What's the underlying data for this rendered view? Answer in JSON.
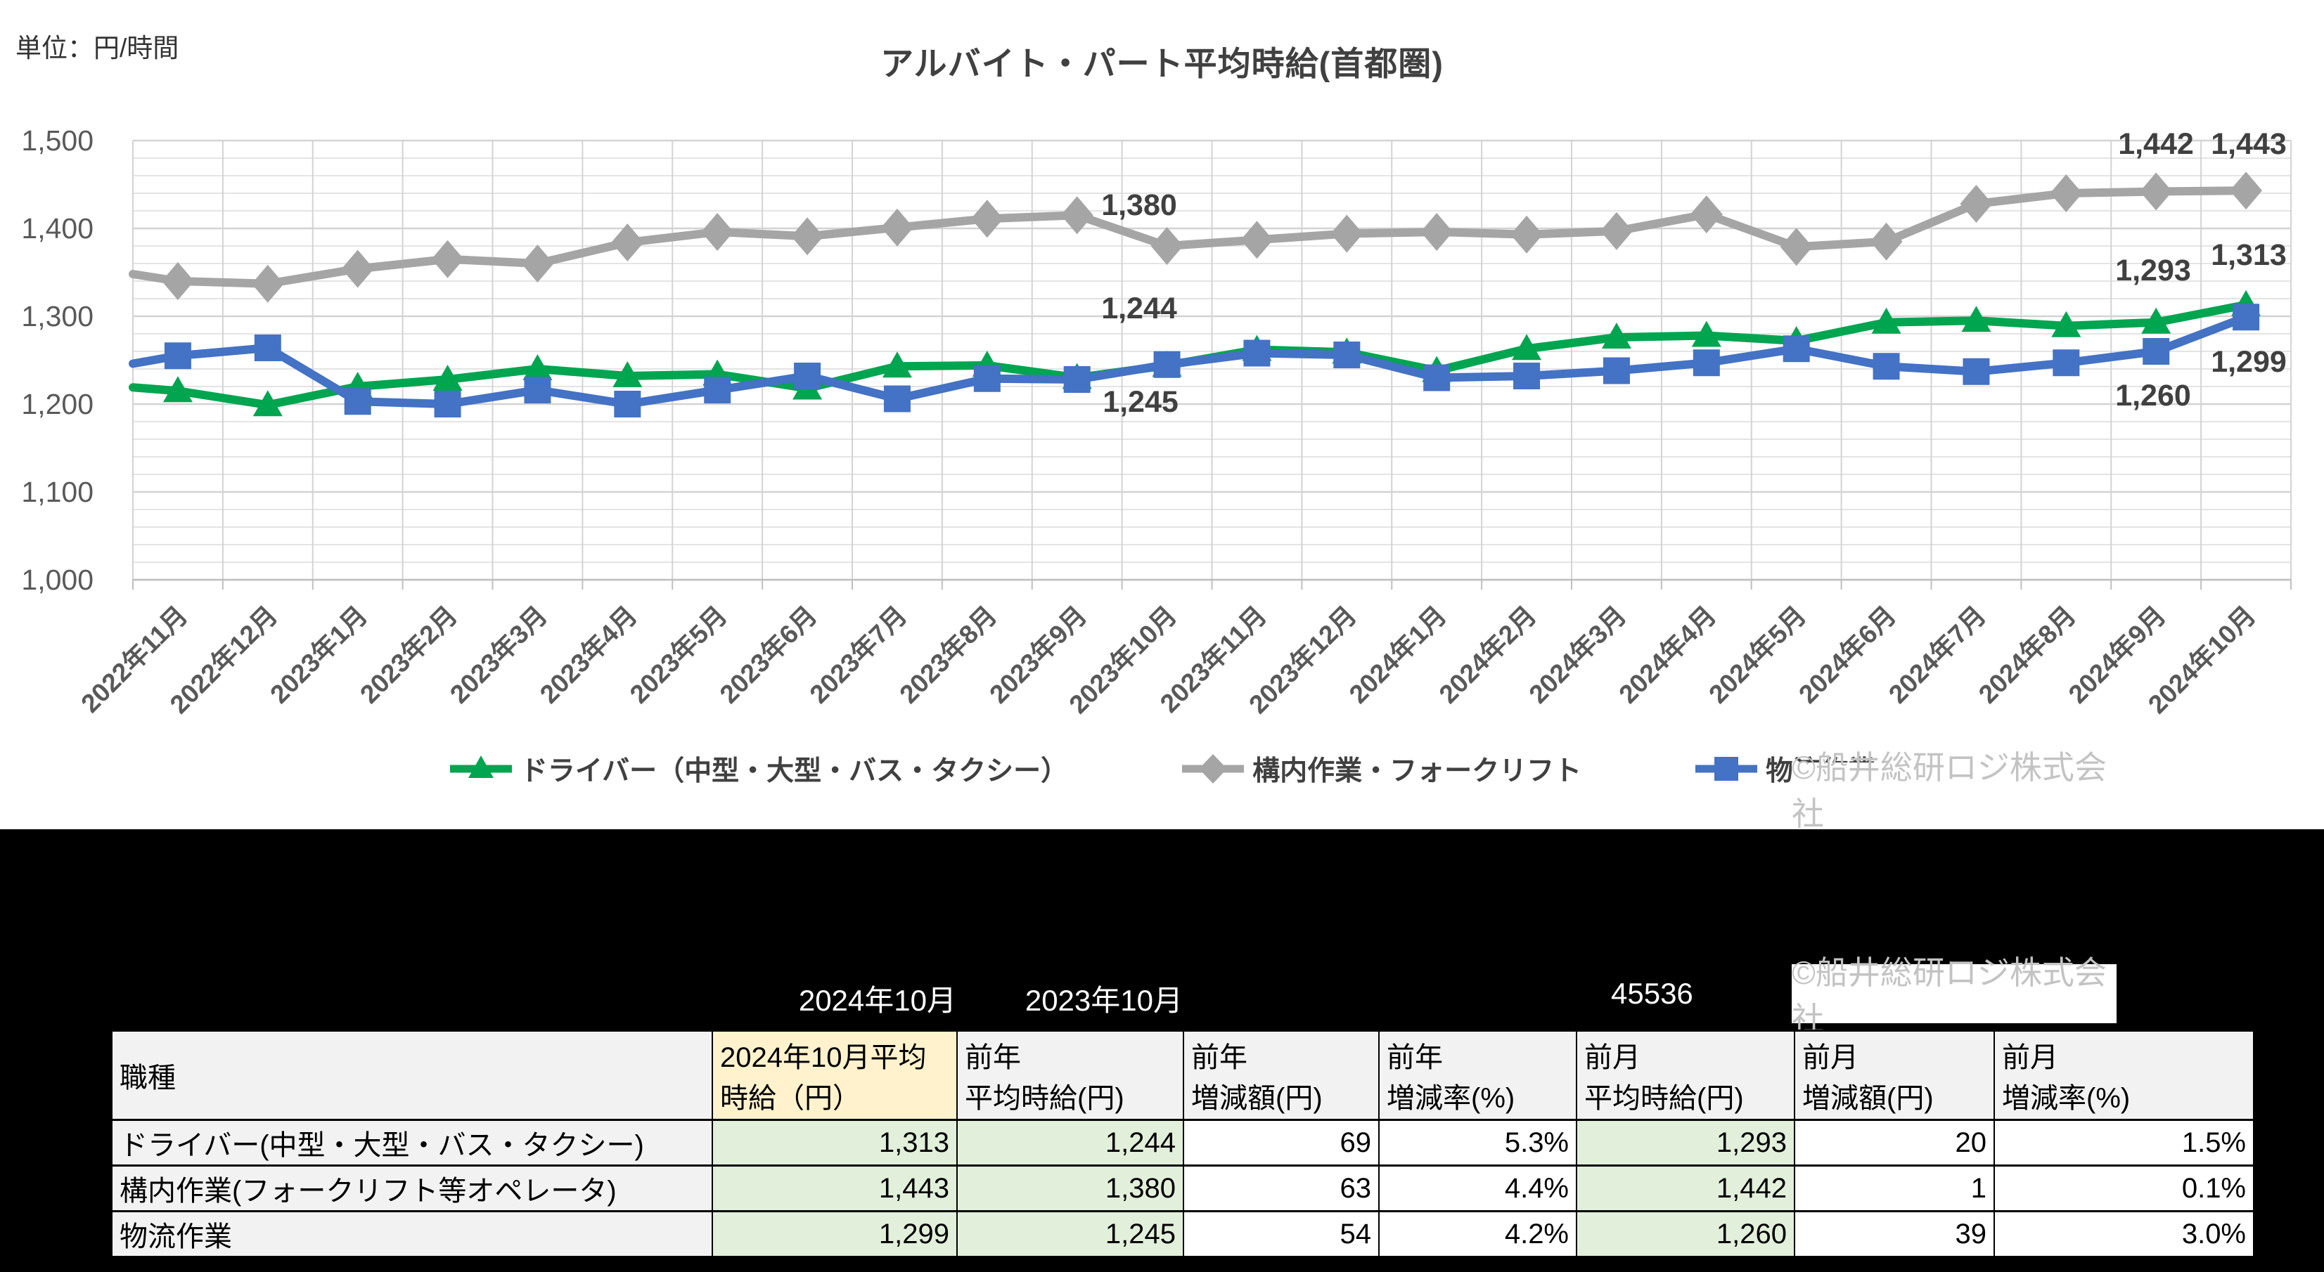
{
  "header": {
    "unit_label": "単位：円/時間",
    "title": "アルバイト・パート平均時給(首都圏)"
  },
  "watermark": "©船井総研ロジ株式会社",
  "chart_data": {
    "type": "line",
    "title": "アルバイト・パート平均時給(首都圏)",
    "unit": "円/時間",
    "ylim": [
      1000,
      1500
    ],
    "ytick_step": 100,
    "minor_step": 20,
    "grid": "on",
    "legend_position": "bottom",
    "categories": [
      "2022年11月",
      "2022年12月",
      "2023年1月",
      "2023年2月",
      "2023年3月",
      "2023年4月",
      "2023年5月",
      "2023年6月",
      "2023年7月",
      "2023年8月",
      "2023年9月",
      "2023年10月",
      "2023年11月",
      "2023年12月",
      "2024年1月",
      "2024年2月",
      "2024年3月",
      "2024年4月",
      "2024年5月",
      "2024年6月",
      "2024年7月",
      "2024年8月",
      "2024年9月",
      "2024年10月"
    ],
    "series": [
      {
        "name": "ドライバー（中型・大型・バス・タクシー）",
        "color": "#00A550",
        "marker": "triangle",
        "values": [
          1215,
          1199,
          1220,
          1228,
          1240,
          1232,
          1234,
          1218,
          1243,
          1244,
          1230,
          1244,
          1262,
          1259,
          1238,
          1263,
          1276,
          1278,
          1272,
          1293,
          1295,
          1289,
          1293,
          1313
        ]
      },
      {
        "name": "構内作業・フォークリフト",
        "color": "#A5A5A5",
        "marker": "diamond",
        "values": [
          1340,
          1337,
          1354,
          1365,
          1360,
          1384,
          1396,
          1391,
          1401,
          1411,
          1415,
          1380,
          1387,
          1394,
          1396,
          1393,
          1397,
          1416,
          1379,
          1385,
          1428,
          1440,
          1442,
          1443
        ]
      },
      {
        "name": "物流作業",
        "color": "#4472C4",
        "marker": "square",
        "values": [
          1255,
          1264,
          1203,
          1200,
          1216,
          1200,
          1216,
          1232,
          1206,
          1229,
          1228,
          1245,
          1258,
          1256,
          1230,
          1232,
          1238,
          1247,
          1263,
          1243,
          1237,
          1247,
          1260,
          1299
        ]
      }
    ],
    "edge_start_values": [
      1219,
      1348,
      1246
    ],
    "ytick_labels": [
      "1,000",
      "1,100",
      "1,200",
      "1,300",
      "1,400",
      "1,500"
    ],
    "point_labels": [
      {
        "series": 1,
        "index": 11,
        "text": "1,380",
        "x": 1620,
        "y": 291
      },
      {
        "series": 0,
        "index": 11,
        "text": "1,244",
        "x": 1620,
        "y": 438
      },
      {
        "series": 2,
        "index": 11,
        "text": "1,245",
        "x": 1622,
        "y": 571
      },
      {
        "series": 1,
        "index": 22,
        "text": "1,442",
        "x": 3066,
        "y": 204
      },
      {
        "series": 1,
        "index": 23,
        "text": "1,443",
        "x": 3198,
        "y": 204
      },
      {
        "series": 0,
        "index": 22,
        "text": "1,293",
        "x": 3062,
        "y": 384
      },
      {
        "series": 0,
        "index": 23,
        "text": "1,313",
        "x": 3198,
        "y": 362
      },
      {
        "series": 2,
        "index": 22,
        "text": "1,260",
        "x": 3062,
        "y": 562
      },
      {
        "series": 2,
        "index": 23,
        "text": "1,299",
        "x": 3198,
        "y": 514
      }
    ]
  },
  "band": {
    "labels": [
      {
        "text": "2024年10月"
      },
      {
        "text": "2023年10月"
      },
      {
        "text": "45536"
      }
    ]
  },
  "table": {
    "headers": [
      "職種",
      "2024年10月平均\n時給（円）",
      "前年\n平均時給(円)",
      "前年\n増減額(円)",
      "前年\n増減率(%)",
      "前月\n平均時給(円)",
      "前月\n増減額(円)",
      "前月\n増減率(%)"
    ],
    "rows": [
      {
        "label": "ドライバー(中型・大型・バス・タクシー)",
        "cells": [
          "1,313",
          "1,244",
          "69",
          "5.3%",
          "1,293",
          "20",
          "1.5%"
        ]
      },
      {
        "label": "構内作業(フォークリフト等オペレータ)",
        "cells": [
          "1,443",
          "1,380",
          "63",
          "4.4%",
          "1,442",
          "1",
          "0.1%"
        ]
      },
      {
        "label": "物流作業",
        "cells": [
          "1,299",
          "1,245",
          "54",
          "4.2%",
          "1,260",
          "39",
          "3.0%"
        ]
      }
    ]
  }
}
